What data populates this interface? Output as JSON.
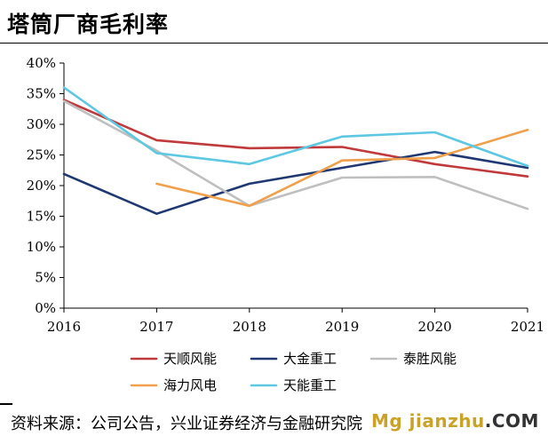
{
  "title": "塔筒厂商毛利率",
  "source": "资料来源：公司公告，兴业证券经济与金融研究院",
  "watermark": {
    "main": "Mg jianzhu",
    "suffix": ".COM"
  },
  "chart_data": {
    "type": "line",
    "x": [
      "2016",
      "2017",
      "2018",
      "2019",
      "2020",
      "2021"
    ],
    "ylim": [
      0,
      40
    ],
    "yticks": [
      "0%",
      "5%",
      "10%",
      "15%",
      "20%",
      "25%",
      "30%",
      "35%",
      "40%"
    ],
    "ytick_values": [
      0,
      5,
      10,
      15,
      20,
      25,
      30,
      35,
      40
    ],
    "grid": false,
    "legend_position": "bottom",
    "series": [
      {
        "name": "天顺风能",
        "color": "#c0393b",
        "values": [
          34,
          27.4,
          26.1,
          26.3,
          23.5,
          21.5
        ]
      },
      {
        "name": "大金重工",
        "color": "#1f3872",
        "values": [
          21.9,
          15.4,
          20.3,
          22.9,
          25.5,
          22.9
        ]
      },
      {
        "name": "泰胜风能",
        "color": "#bfbfbf",
        "values": [
          33.8,
          25.7,
          16.7,
          21.3,
          21.4,
          16.2
        ]
      },
      {
        "name": "海力风电",
        "color": "#f0a04b",
        "values": [
          null,
          20.3,
          16.7,
          24.1,
          24.5,
          29.1
        ]
      },
      {
        "name": "天能重工",
        "color": "#5ec8e3",
        "values": [
          36,
          25.3,
          23.5,
          28,
          28.7,
          23.2
        ]
      }
    ]
  }
}
